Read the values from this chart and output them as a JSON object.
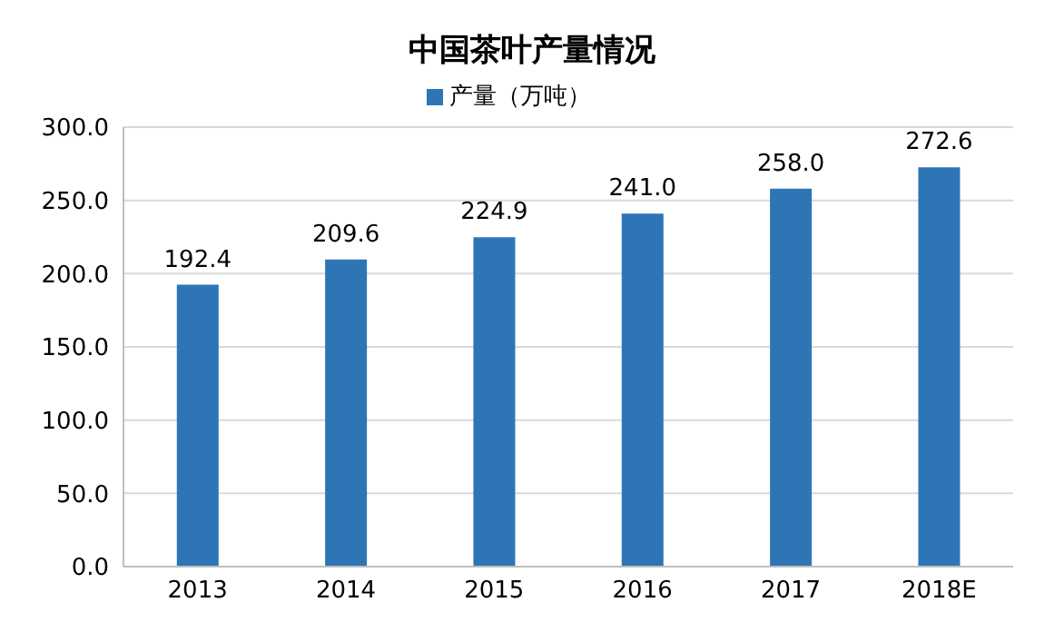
{
  "chart_data": {
    "type": "bar",
    "title": "中国茶叶产量情况",
    "categories": [
      "2013",
      "2014",
      "2015",
      "2016",
      "2017",
      "2018E"
    ],
    "series": [
      {
        "name": "产量（万吨）",
        "color": "#2e75b6",
        "values": [
          192.4,
          209.6,
          224.9,
          241.0,
          258.0,
          272.6
        ],
        "value_labels": [
          "192.4",
          "209.6",
          "224.9",
          "241.0",
          "258.0",
          "272.6"
        ]
      }
    ],
    "ylim": [
      0,
      300
    ],
    "yticks": [
      {
        "value": 0,
        "label": "0.0"
      },
      {
        "value": 50,
        "label": "50.0"
      },
      {
        "value": 100,
        "label": "100.0"
      },
      {
        "value": 150,
        "label": "150.0"
      },
      {
        "value": 200,
        "label": "200.0"
      },
      {
        "value": 250,
        "label": "250.0"
      },
      {
        "value": 300,
        "label": "300.0"
      }
    ],
    "grid": "y",
    "legend": "top"
  }
}
